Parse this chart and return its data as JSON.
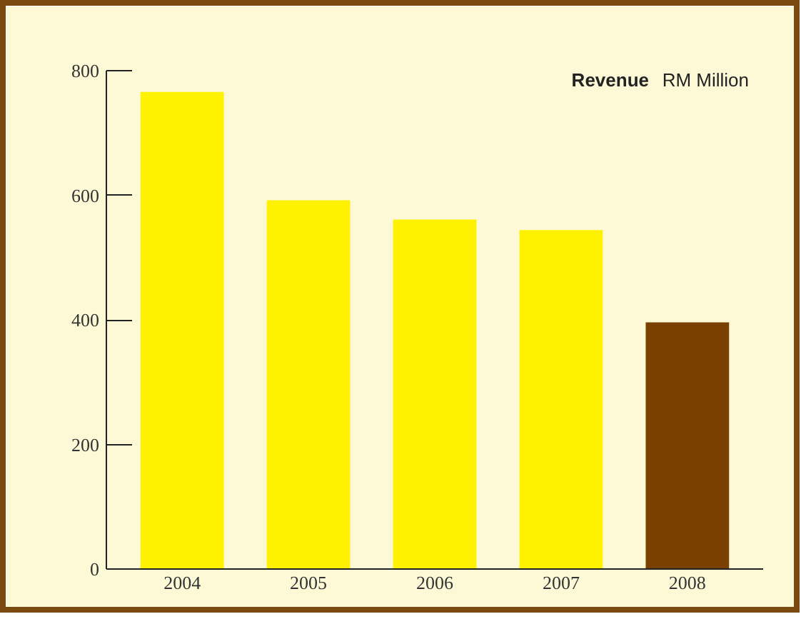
{
  "chart_data": {
    "type": "bar",
    "title": "Revenue",
    "subtitle": "RM Million",
    "categories": [
      "2004",
      "2005",
      "2006",
      "2007",
      "2008"
    ],
    "values": [
      766,
      592,
      561,
      544,
      396
    ],
    "colors": [
      "#fff200",
      "#fff200",
      "#fff200",
      "#fff200",
      "#7a4000"
    ],
    "ylim": [
      0,
      800
    ],
    "yticks": [
      0,
      200,
      400,
      600,
      800
    ],
    "grid": false
  }
}
